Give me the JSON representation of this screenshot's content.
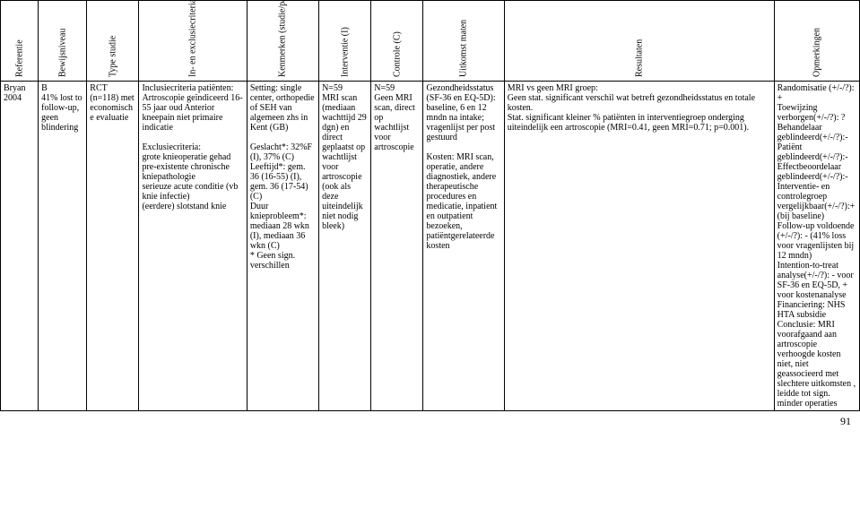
{
  "headers": {
    "ref": "Referentie",
    "bew": "Bewijsniveau",
    "typ": "Type studie",
    "inc": "In- en exclusiecriteria",
    "ken": "Kenmerken (studie/patiënten)",
    "int": "Interventie (I)",
    "con": "Controle (C)",
    "uit": "Uitkomst maten",
    "res": "Resultaten",
    "opm": "Opmerkingen"
  },
  "row": {
    "ref": "Bryan 2004",
    "bew": "B\n41% lost to follow-up, geen blindering",
    "typ": "RCT (n=118) met economische evaluatie",
    "inc": "Inclusiecriteria patiënten: Artroscopie geïndiceerd 16-55 jaar oud Anterior kneepain niet primaire indicatie\n\nExclusiecriteria:\ngrote knieoperatie gehad pre-existente chronische kniepathologie\nserieuze acute conditie (vb knie infectie)\n(eerdere) slotstand knie",
    "ken": "Setting: single center, orthopedie of SEH van algemeen zhs in Kent (GB)\n\nGeslacht*: 32%F (I), 37% (C)\nLeeftijd*: gem. 36 (16-55) (I), gem. 36 (17-54) (C)\nDuur knieprobleem*: mediaan 28 wkn (I), mediaan 36 wkn (C)\n* Geen sign. verschillen",
    "int": "N=59\nMRI scan (mediaan wachttijd 29 dgn) en direct geplaatst op wachtlijst voor artroscopie (ook als deze uiteindelijk niet nodig bleek)",
    "con": "N=59\nGeen MRI scan, direct op wachtlijst voor artroscopie",
    "uit": "Gezondheidsstatus (SF-36 en EQ-5D): baseline, 6 en 12 mndn na intake; vragenlijst per post gestuurd\n\nKosten: MRI scan, operatie, andere diagnostiek, andere therapeutische procedures en medicatie, inpatient en outpatient bezoeken, patiëntgerelateerde kosten",
    "res": "MRI vs geen MRI groep:\nGeen stat. significant verschil wat betreft gezondheidsstatus en totale kosten.\nStat. significant kleiner % patiënten in interventiegroep onderging uiteindelijk een artroscopie (MRI=0.41, geen MRI=0.71; p=0.001).",
    "opm": "Randomisatie (+/-/?): +\nToewijzing verborgen(+/-/?): ?\nBehandelaar geblindeerd(+/-/?):-\nPatiënt geblindeerd(+/-/?):-\nEffectbeoordelaar geblindeerd(+/-/?):-\nInterventie- en controlegroep vergelijkbaar(+/-/?):+(bij baseline)\nFollow-up voldoende (+/-/?): - (41% loss voor vragenlijsten bij 12 mndn)\nIntention-to-treat analyse(+/-/?): - voor SF-36 en EQ-5D, + voor kostenanalyse\nFinanciering: NHS HTA subsidie\nConclusie: MRI voorafgaand aan artroscopie verhoogde kosten niet, niet geassocieerd met slechtere uitkomsten , leidde tot sign. minder operaties"
  },
  "page_number": "91"
}
